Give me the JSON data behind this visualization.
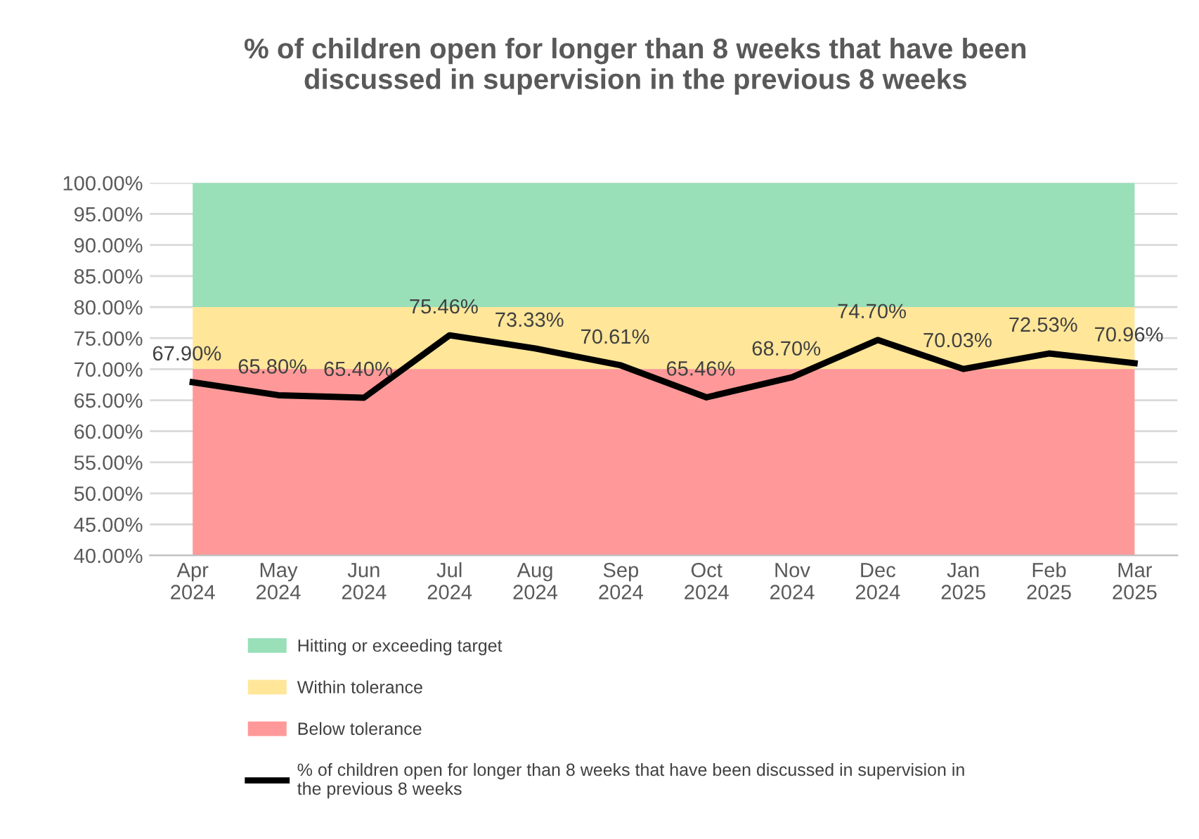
{
  "chart_data": {
    "type": "line",
    "title": "% of children open for longer than 8 weeks that have been\ndiscussed in supervision in the previous 8 weeks",
    "categories": [
      "Apr\n2024",
      "May\n2024",
      "Jun\n2024",
      "Jul\n2024",
      "Aug\n2024",
      "Sep\n2024",
      "Oct\n2024",
      "Nov\n2024",
      "Dec\n2024",
      "Jan\n2025",
      "Feb\n2025",
      "Mar\n2025"
    ],
    "series": [
      {
        "name": "% of children open for longer than 8 weeks that have been discussed in supervision in\nthe previous 8 weeks",
        "color": "#000000",
        "values": [
          67.9,
          65.8,
          65.4,
          75.46,
          73.33,
          70.61,
          65.46,
          68.7,
          74.7,
          70.03,
          72.53,
          70.96
        ],
        "value_labels": [
          "67.90%",
          "65.80%",
          "65.40%",
          "75.46%",
          "73.33%",
          "70.61%",
          "65.46%",
          "68.70%",
          "74.70%",
          "70.03%",
          "72.53%",
          "70.96%"
        ]
      }
    ],
    "bands": [
      {
        "axis": "y",
        "from": 80,
        "to": 100,
        "label": "Hitting or exceeding target",
        "color": "#99dfb8"
      },
      {
        "axis": "y",
        "from": 70,
        "to": 80,
        "label": "Within tolerance",
        "color": "#ffe699"
      },
      {
        "axis": "y",
        "from": 40,
        "to": 70,
        "label": "Below tolerance",
        "color": "#ff9999"
      }
    ],
    "ylim": [
      40,
      100
    ],
    "yticks": [
      {
        "value": 40,
        "label": "40.00%"
      },
      {
        "value": 45,
        "label": "45.00%"
      },
      {
        "value": 50,
        "label": "50.00%"
      },
      {
        "value": 55,
        "label": "55.00%"
      },
      {
        "value": 60,
        "label": "60.00%"
      },
      {
        "value": 65,
        "label": "65.00%"
      },
      {
        "value": 70,
        "label": "70.00%"
      },
      {
        "value": 75,
        "label": "75.00%"
      },
      {
        "value": 80,
        "label": "80.00%"
      },
      {
        "value": 85,
        "label": "85.00%"
      },
      {
        "value": 90,
        "label": "90.00%"
      },
      {
        "value": 95,
        "label": "95.00%"
      },
      {
        "value": 100,
        "label": "100.00%"
      }
    ],
    "grid": "y",
    "legend": "bottom",
    "marker": "none",
    "line_style": "solid"
  }
}
